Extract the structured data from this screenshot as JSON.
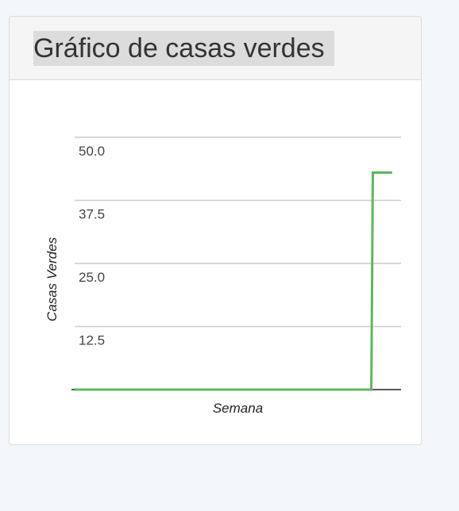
{
  "panel": {
    "title": "Gráfico de casas verdes"
  },
  "chart_data": {
    "type": "line",
    "title": "Gráfico de casas verdes",
    "xlabel": "Semana",
    "ylabel": "Casas Verdes",
    "ylim": [
      0,
      50
    ],
    "y_ticks": [
      "12.5",
      "25.0",
      "37.5",
      "50.0"
    ],
    "y_tick_values": [
      12.5,
      25,
      37.5,
      50
    ],
    "grid": true,
    "legend": "none",
    "series": [
      {
        "color": "#5cb85c",
        "x": [
          0,
          1,
          2,
          3,
          4,
          5,
          6,
          7,
          8,
          9,
          10
        ],
        "values": [
          0,
          0,
          0,
          0,
          0,
          0,
          0,
          0,
          0,
          0,
          0
        ]
      }
    ],
    "step_end": {
      "x": [
        10,
        10.05,
        10.7
      ],
      "values": [
        0,
        43,
        43
      ]
    },
    "colors": {
      "line": "#5cb85c",
      "grid": "#cccccc",
      "axis": "#222222"
    }
  }
}
